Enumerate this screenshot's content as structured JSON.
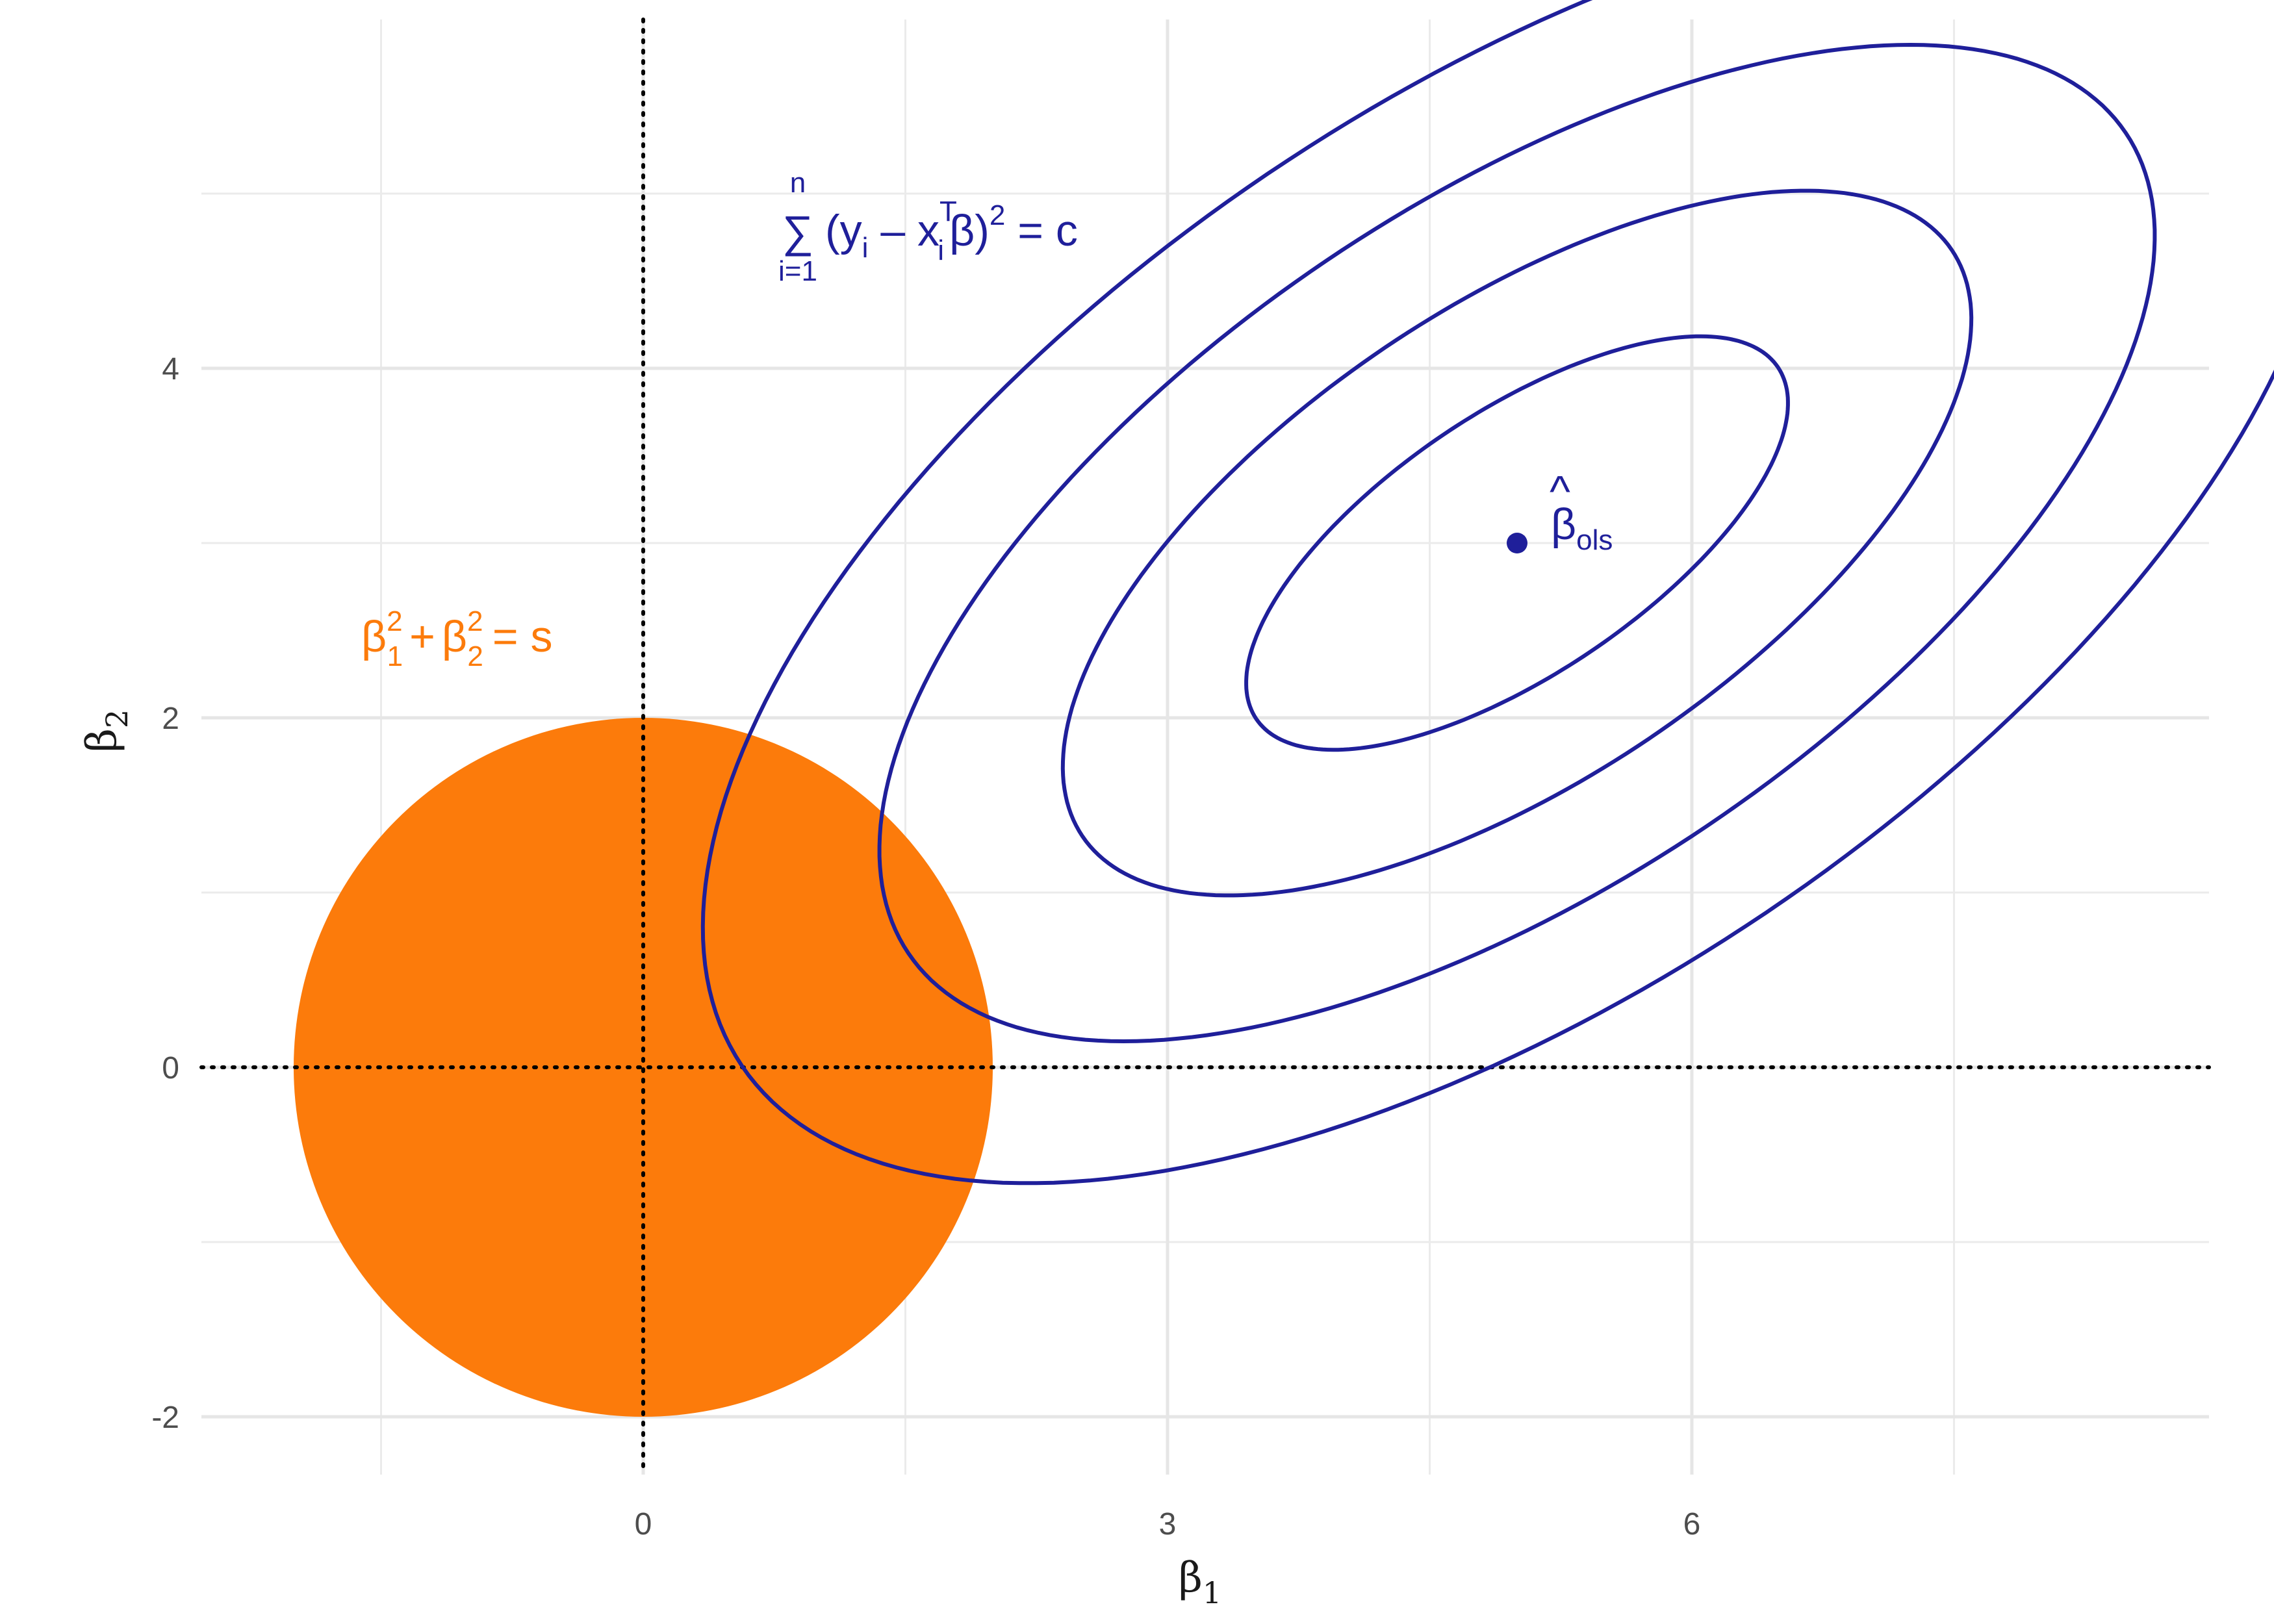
{
  "chart_data": {
    "type": "contour",
    "xlabel": "β",
    "xlabel_sub": "1",
    "ylabel": "β",
    "ylabel_sub": "2",
    "xlim": [
      -2.4,
      9.2
    ],
    "ylim": [
      -2.4,
      5.95
    ],
    "xticks": [
      0,
      3,
      6
    ],
    "xtick_labels": [
      "0",
      "3",
      "6"
    ],
    "yticks": [
      -2,
      0,
      2,
      4
    ],
    "ytick_labels": [
      "-2",
      "0",
      "2",
      "4"
    ],
    "grid": true,
    "reference_lines": [
      {
        "axis": "x",
        "value": 0,
        "style": "dotted"
      },
      {
        "axis": "y",
        "value": 0,
        "style": "dotted"
      }
    ],
    "constraint_region": {
      "shape": "disk",
      "center": [
        0,
        0
      ],
      "radius": 2,
      "color": "#fc7b0b",
      "label_parts": {
        "b1": "β",
        "b1_sub": "1",
        "b1_sup": "2",
        "plus": "+",
        "b2": "β",
        "b2_sub": "2",
        "b2_sup": "2",
        "rhs": "= s"
      }
    },
    "contours": {
      "color": "#1f1f9a",
      "center": [
        5,
        3
      ],
      "angle_deg": 34,
      "semi_axes": [
        [
          1.8,
          0.75
        ],
        [
          3.0,
          1.35
        ],
        [
          4.2,
          1.95
        ],
        [
          5.35,
          2.55
        ]
      ],
      "label_parts": {
        "sum": "∑",
        "upper": "n",
        "lower": "i=1",
        "open": "(y",
        "i1": "i",
        "minus": " – x",
        "i2": "i",
        "T": "T",
        "beta": "β)",
        "sq": "2",
        "rhs": " = c"
      }
    },
    "point": {
      "x": 5,
      "y": 3,
      "color": "#1f1f9a",
      "label_main": "β",
      "label_hat": "^",
      "label_sub": "ols"
    }
  }
}
